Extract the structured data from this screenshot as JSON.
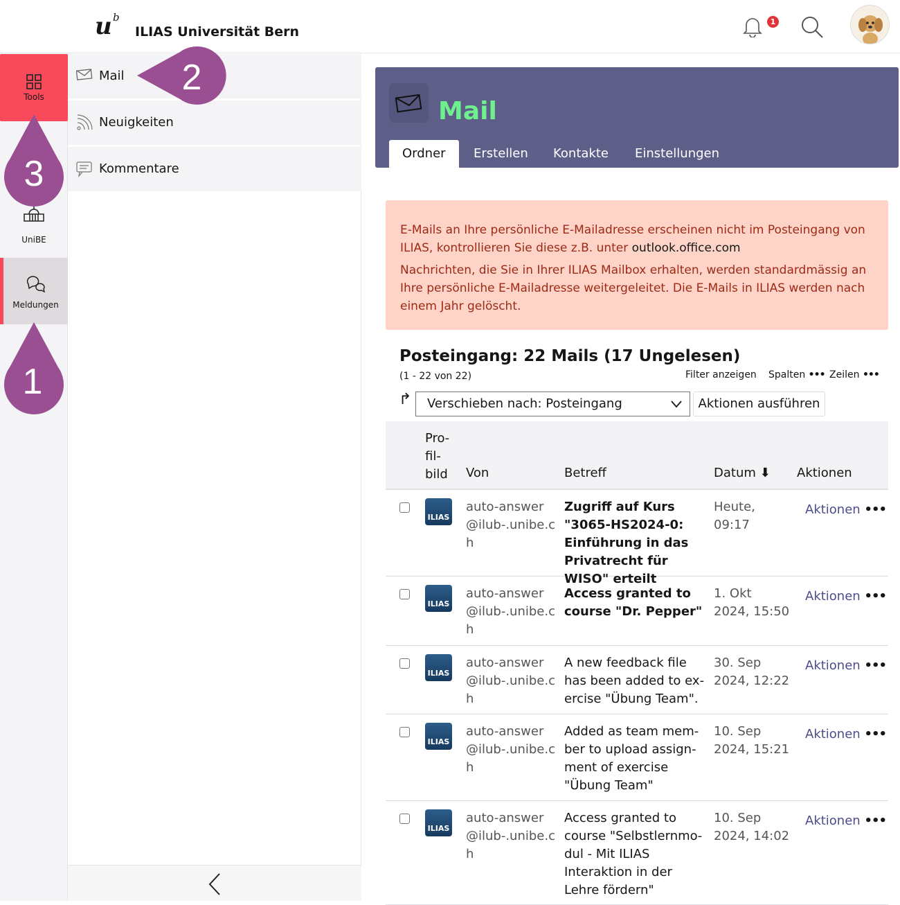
{
  "header": {
    "logo_letter": "u",
    "logo_super": "b",
    "site_title": "ILIAS Universität Bern",
    "notification_count": "1"
  },
  "mainbar": {
    "items": [
      {
        "label": "Tools",
        "icon": "grid-icon",
        "active": true
      },
      {
        "label": "UniBE",
        "icon": "building-icon"
      },
      {
        "label": "Meldungen",
        "icon": "chat-icon",
        "engaged": true
      }
    ]
  },
  "slate": {
    "items": [
      {
        "label": "Mail",
        "icon": "envelope-icon"
      },
      {
        "label": "Neuigkeiten",
        "icon": "rss-icon"
      },
      {
        "label": "Kommentare",
        "icon": "comment-icon"
      }
    ]
  },
  "markers": [
    {
      "number": "1"
    },
    {
      "number": "2"
    },
    {
      "number": "3"
    }
  ],
  "mail": {
    "title": "Mail",
    "tabs": [
      {
        "label": "Ordner",
        "active": true
      },
      {
        "label": "Erstellen"
      },
      {
        "label": "Kontakte"
      },
      {
        "label": "Einstellungen"
      }
    ]
  },
  "alert": {
    "p1": "E-Mails an Ihre persönliche E-Mailadresse erscheinen nicht im Posteingang von ILIAS, kontrollieren Sie diese z.B. unter ",
    "p1_link": "outlook.office.com",
    "p2": "Nachrichten, die Sie in Ihrer ILIAS Mailbox erhalten, werden standardmässig an Ihre persönliche E-Mailadresse weitergeleitet. Die E-Mails in ILIAS werden nach einem Jahr gelöscht."
  },
  "table": {
    "title": "Posteingang: 22 Mails (17 Ungelesen)",
    "range": "(1 - 22 von 22)",
    "filter": "Filter anzeigen",
    "columns": "Spalten",
    "rows_ctrl": "Zeilen",
    "move_select": "Verschieben nach: Posteingang",
    "execute": "Aktionen ausführen",
    "headers": {
      "profile": "Pro­fil­bild",
      "from": "Von",
      "subject": "Betreff",
      "date": "Datum",
      "actions": "Aktionen"
    },
    "sort": "descending",
    "rows": [
      {
        "avatar": "ILIAS",
        "from": "auto-answer@ilub-.unibe.ch",
        "subject": "Zugriff auf Kurs \"3065-HS2024-0: Einführung in das Privatrecht für WISO\" erteilt",
        "date": "Heute, 09:17",
        "unread": true,
        "action": "Aktionen"
      },
      {
        "avatar": "ILIAS",
        "from": "auto-answer@ilub-.unibe.ch",
        "subject": "Access granted to course \"Dr. Pepper\"",
        "date": "1. Okt 2024, 15:50",
        "unread": true,
        "action": "Aktionen"
      },
      {
        "avatar": "ILIAS",
        "from": "auto-answer@ilub-.unibe.ch",
        "subject": "A new feedback file has been added to ex­ercise \"Übung Team\".",
        "date": "30. Sep 2024, 12:22",
        "unread": false,
        "action": "Aktionen"
      },
      {
        "avatar": "ILIAS",
        "from": "auto-answer@ilub-.unibe.ch",
        "subject": "Added as team mem­ber to upload assign­ment of exercise \"Übung Team\"",
        "date": "10. Sep 2024, 15:21",
        "unread": false,
        "action": "Aktionen"
      },
      {
        "avatar": "ILIAS",
        "from": "auto-answer@ilub-.unibe.ch",
        "subject": "Access granted to course \"Selbstlernmo­dul - Mit ILIAS Interakti­on in der Lehre fördern\"",
        "date": "10. Sep 2024, 14:02",
        "unread": false,
        "action": "Aktionen"
      }
    ]
  },
  "colors": {
    "accent": "#f94a5b",
    "mail_header": "#5e5f88",
    "mail_title": "#6ef08e",
    "alert_bg": "#fdd4c7",
    "alert_text": "#9e2a16",
    "marker": "#9b4f93"
  }
}
